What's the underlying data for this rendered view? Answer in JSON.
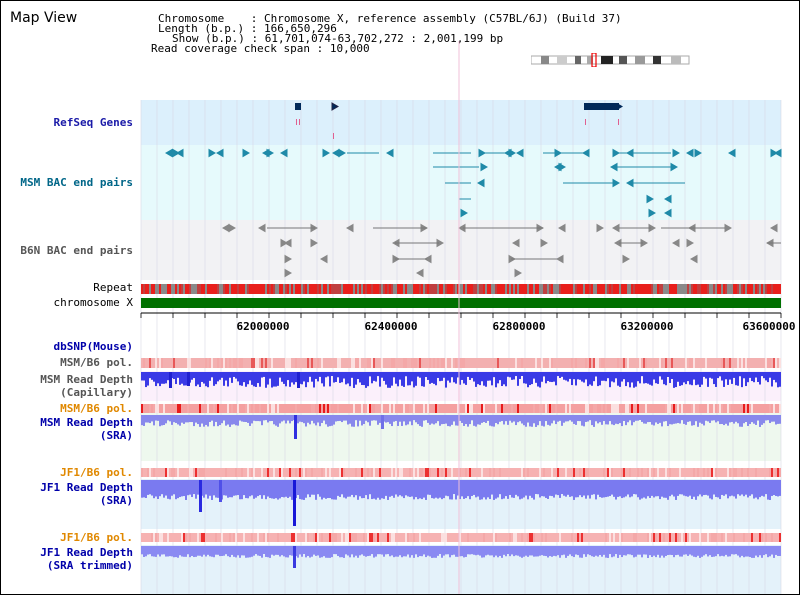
{
  "title": "Map View",
  "info": {
    "chromosome_label": "Chromosome",
    "chromosome_value": "Chromosome X, reference assembly (C57BL/6J) (Build 37)",
    "length_label": "Length (b.p.)",
    "length_value": "166,650,296",
    "show_label": "Show (b.p.)",
    "show_value": "61,701,074-63,702,272 : 2,001,199 bp",
    "coverage_label": "Read coverage check span",
    "coverage_value": "10,000"
  },
  "tracks": {
    "refseq": "RefSeq Genes",
    "msm_bac": "MSM BAC end pairs",
    "b6n_bac": "B6N BAC end pairs",
    "repeat": "Repeat",
    "chromosome": "chromosome X",
    "dbsnp": "dbSNP(Mouse)",
    "msm_b6_pol_1": "MSM/B6 pol.",
    "msm_read_depth_cap_1": "MSM Read Depth",
    "msm_read_depth_cap_2": "(Capillary)",
    "msm_b6_pol_2": "MSM/B6 pol.",
    "msm_read_depth_sra_1": "MSM Read Depth",
    "msm_read_depth_sra_2": "(SRA)",
    "jf1_b6_pol_1": "JF1/B6 pol.",
    "jf1_read_depth_sra_1": "JF1 Read Depth",
    "jf1_read_depth_sra_2": "(SRA)",
    "jf1_b6_pol_2": "JF1/B6 pol.",
    "jf1_read_depth_trim_1": "JF1 Read Depth",
    "jf1_read_depth_trim_2": "(SRA trimmed)"
  },
  "axis": {
    "ticks": [
      "62000000",
      "62400000",
      "62800000",
      "63200000",
      "63600000"
    ]
  },
  "colors": {
    "refseq_bg": "#dcf0fc",
    "msm_bac_bg": "#e6fafc",
    "b6n_bac_bg": "#f2f2f4",
    "repeat_red": "#e8201c",
    "repeat_gray": "#808080",
    "chrom_green": "#007000",
    "depth_blue": "#3030e8",
    "depth_light_blue": "#7878f0",
    "pol_pink": "#f08080"
  }
}
